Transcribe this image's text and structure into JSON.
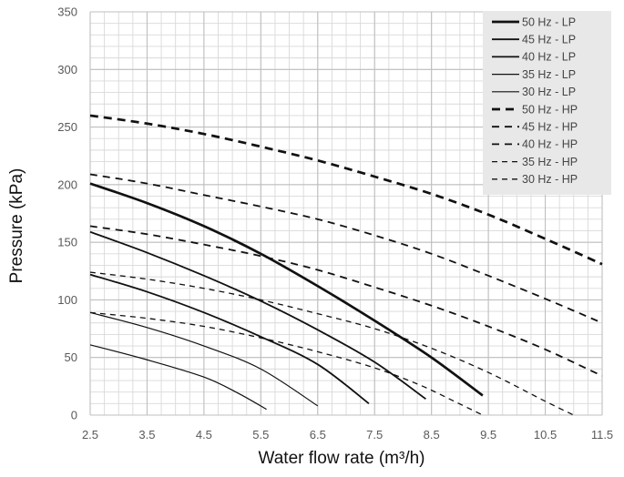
{
  "chart_data": {
    "type": "line",
    "xlabel": "Water flow rate (m³/h)",
    "ylabel": "Pressure (kPa)",
    "xlim": [
      2.5,
      11.5
    ],
    "ylim": [
      0,
      350
    ],
    "x_ticks": [
      2.5,
      3.5,
      4.5,
      5.5,
      6.5,
      7.5,
      8.5,
      9.5,
      10.5,
      11.5
    ],
    "y_ticks": [
      0,
      50,
      100,
      150,
      200,
      250,
      300,
      350
    ],
    "x_tick_labels": [
      "2.5",
      "3.5",
      "4.5",
      "5.5",
      "6.5",
      "7.5",
      "8.5",
      "9.5",
      "10.5",
      "11.5"
    ],
    "y_tick_labels": [
      "0",
      "50",
      "100",
      "150",
      "200",
      "250",
      "300",
      "350"
    ],
    "grid": true,
    "legend_position": "top-right",
    "series": [
      {
        "name": "50 Hz - LP",
        "style": "solid-thick",
        "x": [
          2.5,
          3.5,
          4.5,
          5.5,
          6.5,
          7.5,
          8.5,
          9.4
        ],
        "y": [
          201,
          184,
          164,
          140,
          112,
          82,
          50,
          17
        ]
      },
      {
        "name": "45 Hz - LP",
        "style": "solid-medium",
        "x": [
          2.5,
          3.5,
          4.5,
          5.5,
          6.5,
          7.5,
          8.4
        ],
        "y": [
          159,
          141,
          121,
          99,
          74,
          46,
          14
        ]
      },
      {
        "name": "40 Hz - LP",
        "style": "solid-medium",
        "x": [
          2.5,
          3.5,
          4.5,
          5.5,
          6.5,
          7.4
        ],
        "y": [
          122,
          107,
          89,
          68,
          44,
          10
        ]
      },
      {
        "name": "35 Hz - LP",
        "style": "solid-thin",
        "x": [
          2.5,
          3.5,
          4.5,
          5.5,
          6.5
        ],
        "y": [
          89,
          76,
          60,
          40,
          8
        ]
      },
      {
        "name": "30 Hz - LP",
        "style": "solid-thin",
        "x": [
          2.5,
          3.5,
          4.5,
          5.1,
          5.6
        ],
        "y": [
          61,
          48,
          33,
          19,
          5
        ]
      },
      {
        "name": "50 Hz - HP",
        "style": "dash-thick",
        "x": [
          2.5,
          3.5,
          4.5,
          5.5,
          6.5,
          7.5,
          8.5,
          9.5,
          10.5,
          11.5
        ],
        "y": [
          260,
          253,
          244,
          233,
          221,
          207,
          192,
          174,
          153,
          131
        ]
      },
      {
        "name": "45 Hz - HP",
        "style": "dash-medium",
        "x": [
          2.5,
          3.5,
          4.5,
          5.5,
          6.5,
          7.5,
          8.5,
          9.5,
          10.5,
          11.5
        ],
        "y": [
          209,
          201,
          191,
          181,
          170,
          156,
          140,
          121,
          101,
          80
        ]
      },
      {
        "name": "40 Hz - HP",
        "style": "dash-medium",
        "x": [
          2.5,
          3.5,
          4.5,
          5.5,
          6.5,
          7.5,
          8.5,
          9.5,
          10.5,
          11.5
        ],
        "y": [
          164,
          157,
          148,
          138,
          126,
          111,
          95,
          77,
          57,
          34
        ]
      },
      {
        "name": "35 Hz - HP",
        "style": "dash-thin",
        "x": [
          2.5,
          3.5,
          4.5,
          5.5,
          6.5,
          7.5,
          8.5,
          9.5,
          10.5,
          11.0
        ],
        "y": [
          124,
          118,
          110,
          100,
          88,
          75,
          58,
          37,
          12,
          0
        ]
      },
      {
        "name": "30 Hz - HP",
        "style": "dash-thin",
        "x": [
          2.5,
          3.5,
          4.5,
          5.5,
          6.5,
          7.5,
          8.3,
          8.9,
          9.4
        ],
        "y": [
          89,
          84,
          77,
          67,
          55,
          41,
          26,
          12,
          0
        ]
      }
    ]
  }
}
